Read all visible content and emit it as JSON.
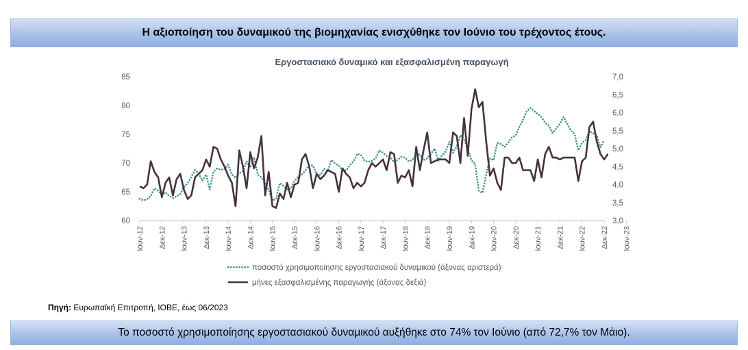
{
  "header": {
    "title": "Η αξιοποίηση του δυναμικού της βιομηχανίας ενισχύθηκε τον Ιούνιο του τρέχοντος έτους."
  },
  "source": {
    "label": "Πηγή:",
    "text": "Ευρωπαϊκή Επιτροπή, ΙΟΒΕ, έως 06/2023"
  },
  "footer": {
    "text": "Το ποσοστό χρησιμοποίησης εργοστασιακού δυναμικού αυξήθηκε στο 74% τον Ιούνιο (από 72,7% τον Μάιο)."
  },
  "colors": {
    "capacity": "#3e8f8a",
    "production": "#45323f",
    "axis": "#bfbfbf",
    "title": "#44546a",
    "tick": "#595959"
  },
  "chart_data": {
    "type": "line",
    "title": "Εργοστασιακό δυναμικό και εξασφαλισμένη παραγωγή",
    "x_tick_labels": [
      "Ιουν-12",
      "Δεκ-12",
      "Ιουν-13",
      "Δεκ-13",
      "Ιουν-14",
      "Δεκ-14",
      "Ιουν-15",
      "Δεκ-15",
      "Ιουν-16",
      "Δεκ-16",
      "Ιουν-17",
      "Δεκ-17",
      "Ιουν-18",
      "Δεκ-18",
      "Ιουν-19",
      "Δεκ-19",
      "Ιουν-20",
      "Δεκ-20",
      "Ιουν-21",
      "Δεκ-21",
      "Ιουν-22",
      "Δεκ-22",
      "Ιουν-23"
    ],
    "y_left": {
      "min": 60,
      "max": 85,
      "ticks": [
        "60",
        "65",
        "70",
        "75",
        "80",
        "85"
      ]
    },
    "y_right": {
      "min": 3.0,
      "max": 7.0,
      "ticks": [
        "3,0",
        "3,5",
        "4,0",
        "4,5",
        "5,0",
        "5,5",
        "6,0",
        "6,5",
        "7,0"
      ]
    },
    "legend_position": "bottom",
    "series": [
      {
        "name": "ποσοστό χρησιμοποίησης εργοστασιακού δυναμικού  (άξονας αριστερά)",
        "axis": "left",
        "style": "dotted",
        "values": [
          63.8,
          63.5,
          63.7,
          64.3,
          65.6,
          65.2,
          64.5,
          64.9,
          64.3,
          63.9,
          64.2,
          64.6,
          65.8,
          66.5,
          67.6,
          68.8,
          68.2,
          66.9,
          68.0,
          65.4,
          68.5,
          69.1,
          68.8,
          69.0,
          69.7,
          68.0,
          67.4,
          68.2,
          68.6,
          70.3,
          69.2,
          71.0,
          68.0,
          67.5,
          66.5,
          65.3,
          63.5,
          63.8,
          66.5,
          66.0,
          65.4,
          65.6,
          66.9,
          67.6,
          68.0,
          68.8,
          69.6,
          69.6,
          68.0,
          67.9,
          69.0,
          68.6,
          70.5,
          69.9,
          69.6,
          68.7,
          68.7,
          69.6,
          70.3,
          71.6,
          71.4,
          70.4,
          70.2,
          70.4,
          70.8,
          72.2,
          71.8,
          71.2,
          71.0,
          70.1,
          70.6,
          71.1,
          70.9,
          70.3,
          70.6,
          71.5,
          71.5,
          70.5,
          70.8,
          71.6,
          72.5,
          70.4,
          71.3,
          72.0,
          73.7,
          71.8,
          72.9,
          74.8,
          74.1,
          72.5,
          70.5,
          69.8,
          65.2,
          64.8,
          68.0,
          70.8,
          70.5,
          73.5,
          73.3,
          72.8,
          73.6,
          74.5,
          74.8,
          76.3,
          77.5,
          79.0,
          79.6,
          79.0,
          78.5,
          78.0,
          77.0,
          76.5,
          75.2,
          76.0,
          76.8,
          78.0,
          76.8,
          75.6,
          75.0,
          72.2,
          73.5,
          74.0,
          75.5,
          75.2,
          74.8,
          72.7,
          74.0
        ]
      },
      {
        "name": "μήνες εξασφαλισμένης παραγωγής (άξονας δεξιά)",
        "axis": "right",
        "style": "solid",
        "values": [
          3.95,
          3.9,
          4.0,
          4.65,
          4.35,
          4.2,
          3.65,
          4.05,
          4.2,
          3.7,
          4.15,
          4.3,
          3.85,
          3.6,
          3.7,
          4.2,
          4.3,
          4.4,
          4.7,
          4.5,
          5.05,
          5.0,
          4.7,
          4.5,
          4.25,
          4.05,
          3.4,
          4.95,
          4.5,
          3.9,
          4.9,
          4.45,
          4.75,
          5.35,
          3.7,
          4.35,
          3.4,
          3.35,
          3.75,
          3.6,
          4.05,
          3.65,
          4.0,
          4.05,
          4.7,
          4.85,
          4.5,
          3.9,
          4.3,
          4.15,
          4.25,
          4.4,
          4.35,
          4.3,
          3.8,
          4.45,
          4.3,
          4.2,
          3.9,
          4.05,
          3.95,
          4.05,
          4.4,
          4.6,
          4.5,
          4.6,
          4.7,
          4.4,
          4.9,
          4.85,
          4.05,
          4.25,
          4.2,
          4.4,
          3.95,
          5.05,
          4.4,
          4.95,
          5.45,
          4.6,
          4.65,
          4.7,
          4.7,
          4.7,
          4.6,
          5.45,
          5.35,
          4.6,
          5.85,
          4.8,
          6.1,
          6.65,
          6.15,
          6.3,
          5.2,
          4.25,
          4.45,
          4.05,
          3.85,
          4.75,
          4.75,
          4.6,
          4.6,
          4.75,
          4.4,
          4.4,
          4.4,
          4.1,
          4.7,
          4.2,
          4.85,
          5.05,
          4.75,
          4.75,
          4.7,
          4.75,
          4.75,
          4.75,
          4.75,
          4.1,
          4.65,
          4.75,
          5.6,
          5.75,
          5.2,
          4.85,
          4.7,
          4.85
        ]
      }
    ]
  }
}
